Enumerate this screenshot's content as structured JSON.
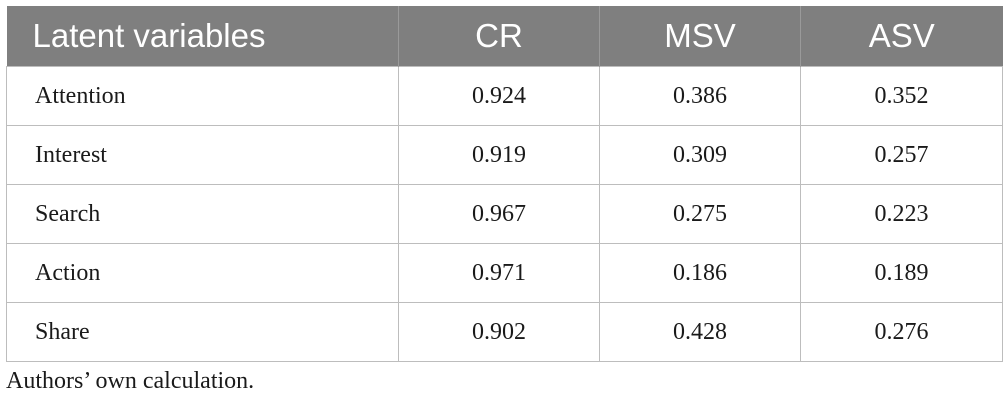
{
  "table": {
    "headers": [
      "Latent variables",
      "CR",
      "MSV",
      "ASV"
    ],
    "rows": [
      [
        "Attention",
        "0.924",
        "0.386",
        "0.352"
      ],
      [
        "Interest",
        "0.919",
        "0.309",
        "0.257"
      ],
      [
        "Search",
        "0.967",
        "0.275",
        "0.223"
      ],
      [
        "Action",
        "0.971",
        "0.186",
        "0.189"
      ],
      [
        "Share",
        "0.902",
        "0.428",
        "0.276"
      ]
    ]
  },
  "footnote": "Authors’ own calculation.",
  "colors": {
    "header_background": "#7f7f7f",
    "header_text": "#ffffff",
    "grid_line": "#bdbdbd"
  }
}
